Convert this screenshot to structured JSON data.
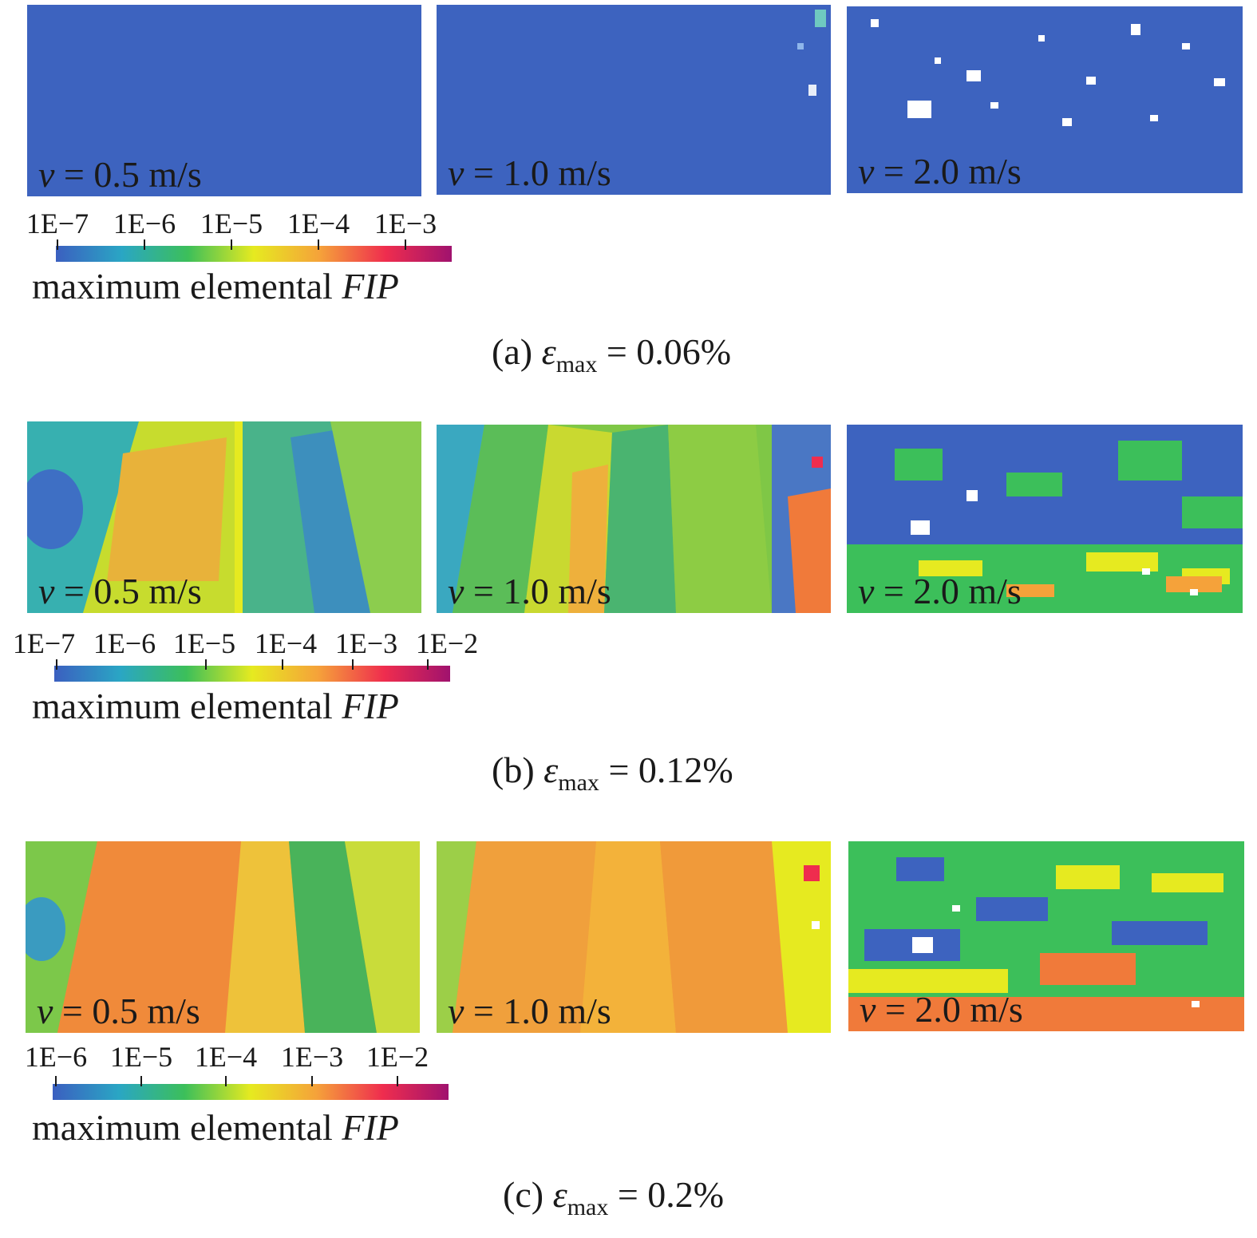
{
  "rows": [
    {
      "id": "a",
      "panels": [
        {
          "label_var": "v",
          "label_rest": " = 0.5 m/s",
          "field": "uniform_low"
        },
        {
          "label_var": "v",
          "label_rest": " = 1.0 m/s",
          "field": "uniform_low_edge"
        },
        {
          "label_var": "v",
          "label_rest": " = 2.0 m/s",
          "field": "speckled_low"
        }
      ],
      "colorbar": {
        "ticks": [
          "1E−7",
          "1E−6",
          "1E−5",
          "1E−4",
          "1E−3"
        ],
        "title_plain": "maximum elemental ",
        "title_italic": "FIP"
      },
      "caption": {
        "prefix": "(a) ",
        "symbol": "ε",
        "subscript": "max",
        "suffix": " = 0.06%"
      }
    },
    {
      "id": "b",
      "panels": [
        {
          "label_var": "v",
          "label_rest": " = 0.5 m/s",
          "field": "bands_mid"
        },
        {
          "label_var": "v",
          "label_rest": " = 1.0 m/s",
          "field": "bands_green"
        },
        {
          "label_var": "v",
          "label_rest": " = 2.0 m/s",
          "field": "network_mid"
        }
      ],
      "colorbar": {
        "ticks": [
          "1E−7",
          "1E−6",
          "1E−5",
          "1E−4",
          "1E−3",
          "1E−2"
        ],
        "title_plain": "maximum elemental ",
        "title_italic": "FIP"
      },
      "caption": {
        "prefix": "(b) ",
        "symbol": "ε",
        "subscript": "max",
        "suffix": " = 0.12%"
      }
    },
    {
      "id": "c",
      "panels": [
        {
          "label_var": "v",
          "label_rest": " = 0.5 m/s",
          "field": "bands_orange"
        },
        {
          "label_var": "v",
          "label_rest": " = 1.0 m/s",
          "field": "bands_orange2"
        },
        {
          "label_var": "v",
          "label_rest": " = 2.0 m/s",
          "field": "network_high"
        }
      ],
      "colorbar": {
        "ticks": [
          "1E−6",
          "1E−5",
          "1E−4",
          "1E−3",
          "1E−2"
        ],
        "title_plain": "maximum elemental ",
        "title_italic": "FIP"
      },
      "caption": {
        "prefix": "(c) ",
        "symbol": "ε",
        "subscript": "max",
        "suffix": " = 0.2%"
      }
    }
  ],
  "colors": {
    "scale": [
      "#3b5fc0",
      "#2aa6c4",
      "#3cbf5a",
      "#e6ea20",
      "#f5a23a",
      "#ef2d4e",
      "#a0126e"
    ],
    "base_blue": "#3d63bf"
  }
}
